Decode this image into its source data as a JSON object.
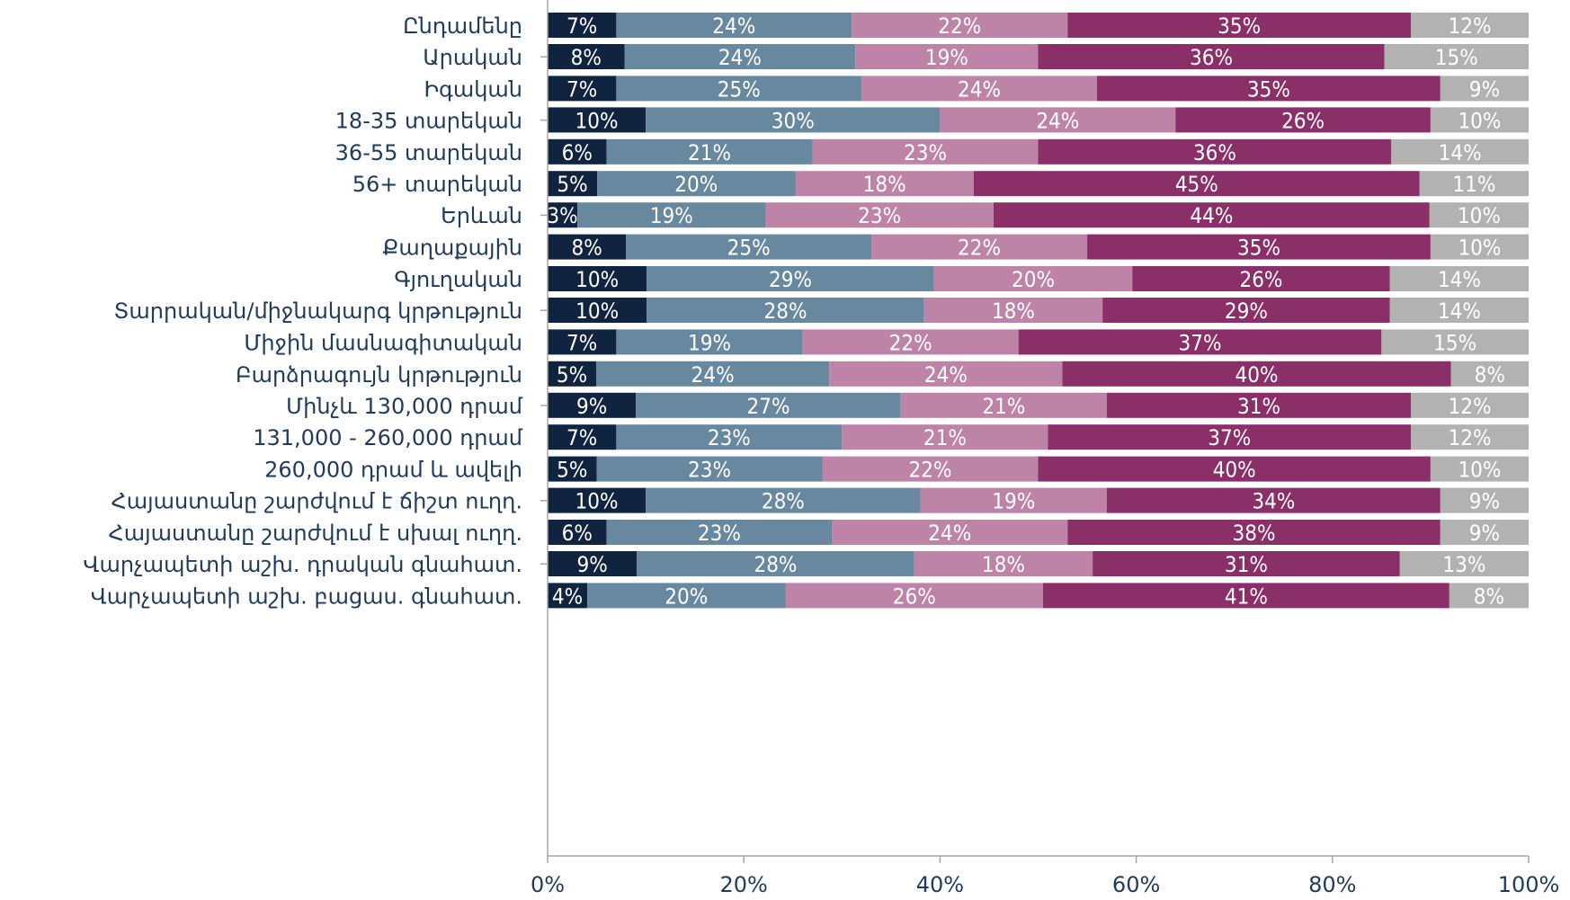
{
  "chart_data": {
    "type": "bar",
    "orientation": "horizontal",
    "stacked": true,
    "percent": true,
    "title": "",
    "xlabel": "",
    "ylabel": "",
    "xlim": [
      0,
      100
    ],
    "x_ticks": [
      "0%",
      "20%",
      "40%",
      "60%",
      "80%",
      "100%"
    ],
    "grid": false,
    "legend": "none",
    "series_colors": [
      "#10233f",
      "#67889e",
      "#bd84a8",
      "#8b2f68",
      "#b2b2b2"
    ],
    "groups": [
      {
        "rows": [
          {
            "label": "Ընդամենը",
            "values": [
              7,
              24,
              22,
              35,
              12
            ]
          }
        ]
      },
      {
        "rows": [
          {
            "label": "Արական",
            "values": [
              8,
              24,
              19,
              36,
              15
            ]
          },
          {
            "label": "Իգական",
            "values": [
              7,
              25,
              24,
              35,
              9
            ]
          }
        ]
      },
      {
        "rows": [
          {
            "label": "18-35 տարեկան",
            "values": [
              10,
              30,
              24,
              26,
              10
            ]
          },
          {
            "label": "36-55 տարեկան",
            "values": [
              6,
              21,
              23,
              36,
              14
            ]
          },
          {
            "label": "56+ տարեկան",
            "values": [
              5,
              20,
              18,
              45,
              11
            ]
          }
        ]
      },
      {
        "rows": [
          {
            "label": "Երևան",
            "values": [
              3,
              19,
              23,
              44,
              10
            ]
          },
          {
            "label": "Քաղաքային",
            "values": [
              8,
              25,
              22,
              35,
              10
            ]
          },
          {
            "label": "Գյուղական",
            "values": [
              10,
              29,
              20,
              26,
              14
            ]
          }
        ]
      },
      {
        "rows": [
          {
            "label": "Տարրական/միջնակարգ կրթություն",
            "values": [
              10,
              28,
              18,
              29,
              14
            ]
          },
          {
            "label": "Միջին մասնագիտական",
            "values": [
              7,
              19,
              22,
              37,
              15
            ]
          },
          {
            "label": "Բարձրագույն կրթություն",
            "values": [
              5,
              24,
              24,
              40,
              8
            ]
          }
        ]
      },
      {
        "rows": [
          {
            "label": "Մինչև 130,000 դրամ",
            "values": [
              9,
              27,
              21,
              31,
              12
            ]
          },
          {
            "label": "131,000 - 260,000 դրամ",
            "values": [
              7,
              23,
              21,
              37,
              12
            ]
          },
          {
            "label": "260,000 դրամ և ավելի",
            "values": [
              5,
              23,
              22,
              40,
              10
            ]
          }
        ]
      },
      {
        "rows": [
          {
            "label": "Հայաստանը շարժվում է ճիշտ ուղղ.",
            "values": [
              10,
              28,
              19,
              34,
              9
            ]
          },
          {
            "label": "Հայաստանը շարժվում է սխալ ուղղ.",
            "values": [
              6,
              23,
              24,
              38,
              9
            ]
          }
        ]
      },
      {
        "rows": [
          {
            "label": "Վարչապետի աշխ. դրական գնահատ.",
            "values": [
              9,
              28,
              18,
              31,
              13
            ]
          },
          {
            "label": "Վարչապետի աշխ. բացաս. գնահատ.",
            "values": [
              4,
              20,
              26,
              41,
              8
            ]
          }
        ]
      }
    ]
  }
}
